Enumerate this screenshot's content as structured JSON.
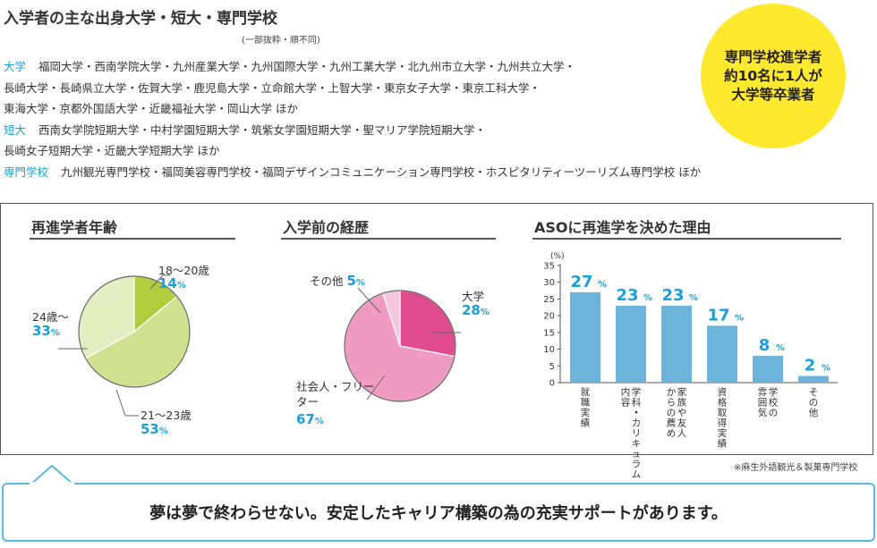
{
  "header": {
    "title": "入学者の主な出身大学・短大・専門学校",
    "note": "(一部抜粋・順不同)"
  },
  "universities": {
    "label": "大学",
    "lines": [
      "福岡大学・西南学院大学・九州産業大学・九州国際大学・九州工業大学・北九州市立大学・九州共立大学・",
      "長崎大学・長崎県立大学・佐賀大学・鹿児島大学・立命館大学・上智大学・東京女子大学・東京工科大学・",
      "東海大学・京都外国語大学・近畿福祉大学・岡山大学 ほか"
    ]
  },
  "junior_colleges": {
    "label": "短大",
    "lines": [
      "西南女学院短期大学・中村学園短期大学・筑紫女学園短期大学・聖マリア学院短期大学・",
      "長崎女子短期大学・近畿大学短期大学 ほか"
    ]
  },
  "vocational": {
    "label": "専門学校",
    "lines": [
      "九州観光専門学校・福岡美容専門学校・福岡デザインコミュニケーション専門学校・ホスピタリティーツーリズム専門学校 ほか"
    ]
  },
  "badge": {
    "lines": [
      "専門学校進学者",
      "約10名に1人が",
      "大学等卒業者"
    ],
    "color": "#ffe92e"
  },
  "panels": {
    "age": {
      "title": "再進学者年齢"
    },
    "background": {
      "title": "入学前の経歴"
    },
    "reasons": {
      "title": "ASOに再進学を決めた理由"
    }
  },
  "chart_data": [
    {
      "type": "pie",
      "title": "再進学者年齢",
      "labels": [
        "18〜20歳",
        "21〜23歳",
        "24歳〜"
      ],
      "values": [
        14,
        53,
        33
      ],
      "unit": "%",
      "colors": [
        "#b3cc3d",
        "#cfe08e",
        "#e4eec0"
      ]
    },
    {
      "type": "pie",
      "title": "入学前の経歴",
      "labels": [
        "大学",
        "社会人・フリーター",
        "その他"
      ],
      "values": [
        28,
        67,
        5
      ],
      "unit": "%",
      "colors": [
        "#e04c8e",
        "#f09cc2",
        "#f6c7dc"
      ]
    },
    {
      "type": "bar",
      "title": "ASOに再進学を決めた理由",
      "ylabel": "(%)",
      "ylim": [
        0,
        35
      ],
      "yticks": [
        "0",
        "5",
        "10",
        "15",
        "20",
        "25",
        "30",
        "35"
      ],
      "categories": [
        "就職実績",
        "学科・カリキュラム内容",
        "家族や友人からの薦め",
        "資格取得実績",
        "学校の雰囲気",
        "その他"
      ],
      "category_columns": [
        [
          "就職実績"
        ],
        [
          "学科・カリキュラム",
          "内容"
        ],
        [
          "家族や友人",
          "からの薦め"
        ],
        [
          "資格取得実績"
        ],
        [
          "学校の",
          "雰囲気"
        ],
        [
          "その他"
        ]
      ],
      "values": [
        27,
        23,
        23,
        17,
        8,
        2
      ],
      "unit": "%",
      "bar_color": "#6db4dc"
    }
  ],
  "source": "※麻生外語観光＆製菓専門学校",
  "message": "夢は夢で終わらせない。安定したキャリア構築の為の充実サポートがあります。",
  "colors": {
    "accent": "#1a9fd9",
    "bubble_border": "#5ab8e6"
  }
}
